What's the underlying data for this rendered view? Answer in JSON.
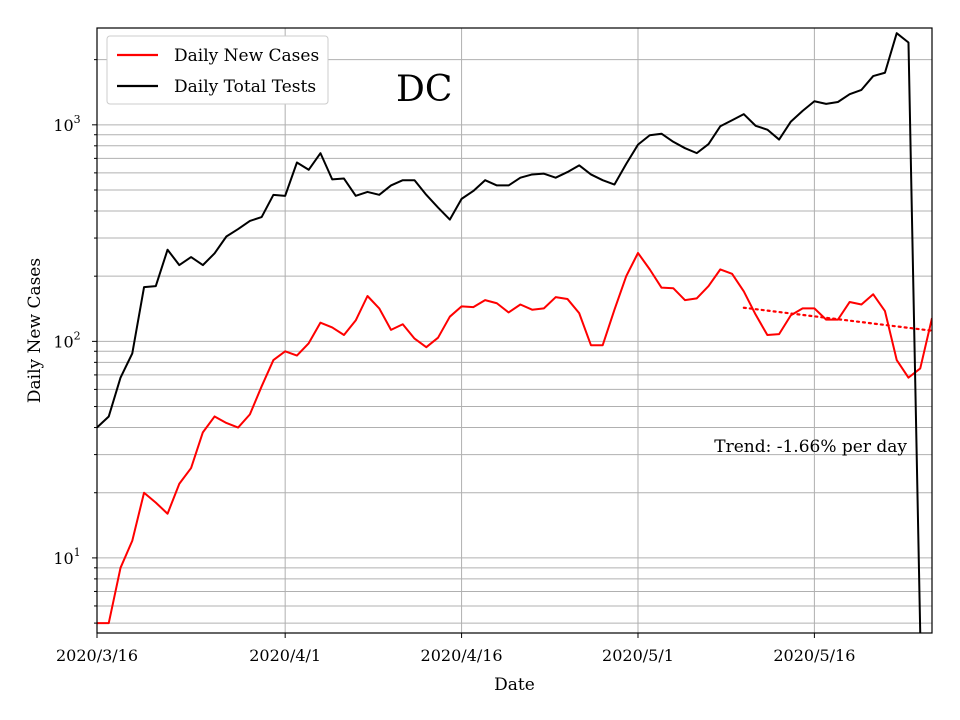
{
  "chart_data": {
    "type": "line",
    "title": "",
    "state_label": "DC",
    "xlabel": "Date",
    "ylabel": "Daily New Cases",
    "yscale": "log",
    "ylim": [
      4.5,
      2800
    ],
    "xlim": [
      "2020-03-16",
      "2020-05-26"
    ],
    "x_ticks": [
      "2020/3/16",
      "2020/4/1",
      "2020/4/16",
      "2020/5/1",
      "2020/5/16"
    ],
    "y_ticks": [
      "10^1",
      "10^2",
      "10^3"
    ],
    "grid": true,
    "legend_position": "upper-left",
    "annotation": "Trend: -1.66% per day",
    "series": [
      {
        "name": "Daily New Cases",
        "color": "#ff0000",
        "x": [
          "2020-03-16",
          "2020-03-17",
          "2020-03-18",
          "2020-03-19",
          "2020-03-20",
          "2020-03-21",
          "2020-03-22",
          "2020-03-23",
          "2020-03-24",
          "2020-03-25",
          "2020-03-26",
          "2020-03-27",
          "2020-03-28",
          "2020-03-29",
          "2020-03-30",
          "2020-03-31",
          "2020-04-01",
          "2020-04-02",
          "2020-04-03",
          "2020-04-04",
          "2020-04-05",
          "2020-04-06",
          "2020-04-07",
          "2020-04-08",
          "2020-04-09",
          "2020-04-10",
          "2020-04-11",
          "2020-04-12",
          "2020-04-13",
          "2020-04-14",
          "2020-04-15",
          "2020-04-16",
          "2020-04-17",
          "2020-04-18",
          "2020-04-19",
          "2020-04-20",
          "2020-04-21",
          "2020-04-22",
          "2020-04-23",
          "2020-04-24",
          "2020-04-25",
          "2020-04-26",
          "2020-04-27",
          "2020-04-28",
          "2020-04-29",
          "2020-04-30",
          "2020-05-01",
          "2020-05-02",
          "2020-05-03",
          "2020-05-04",
          "2020-05-05",
          "2020-05-06",
          "2020-05-07",
          "2020-05-08",
          "2020-05-09",
          "2020-05-10",
          "2020-05-11",
          "2020-05-12",
          "2020-05-13",
          "2020-05-14",
          "2020-05-15",
          "2020-05-16",
          "2020-05-17",
          "2020-05-18",
          "2020-05-19",
          "2020-05-20",
          "2020-05-21",
          "2020-05-22",
          "2020-05-23",
          "2020-05-24",
          "2020-05-25",
          "2020-05-26"
        ],
        "values": [
          5,
          5,
          9,
          12,
          20,
          18,
          16,
          22,
          26,
          38,
          45,
          42,
          40,
          46,
          62,
          82,
          90,
          86,
          98,
          122,
          116,
          107,
          125,
          162,
          142,
          113,
          120,
          103,
          94,
          104,
          130,
          145,
          144,
          155,
          150,
          136,
          148,
          140,
          142,
          160,
          157,
          135,
          96,
          96,
          140,
          200,
          256,
          215,
          177,
          176,
          155,
          158,
          180,
          215,
          205,
          170,
          133,
          107,
          108,
          132,
          142,
          142,
          126,
          126,
          152,
          148,
          165,
          138,
          82,
          68,
          75,
          128
        ]
      },
      {
        "name": "Daily Total Tests",
        "color": "#000000",
        "x": [
          "2020-03-16",
          "2020-03-17",
          "2020-03-18",
          "2020-03-19",
          "2020-03-20",
          "2020-03-21",
          "2020-03-22",
          "2020-03-23",
          "2020-03-24",
          "2020-03-25",
          "2020-03-26",
          "2020-03-27",
          "2020-03-28",
          "2020-03-29",
          "2020-03-30",
          "2020-03-31",
          "2020-04-01",
          "2020-04-02",
          "2020-04-03",
          "2020-04-04",
          "2020-04-05",
          "2020-04-06",
          "2020-04-07",
          "2020-04-08",
          "2020-04-09",
          "2020-04-10",
          "2020-04-11",
          "2020-04-12",
          "2020-04-13",
          "2020-04-14",
          "2020-04-15",
          "2020-04-16",
          "2020-04-17",
          "2020-04-18",
          "2020-04-19",
          "2020-04-20",
          "2020-04-21",
          "2020-04-22",
          "2020-04-23",
          "2020-04-24",
          "2020-04-25",
          "2020-04-26",
          "2020-04-27",
          "2020-04-28",
          "2020-04-29",
          "2020-04-30",
          "2020-05-01",
          "2020-05-02",
          "2020-05-03",
          "2020-05-04",
          "2020-05-05",
          "2020-05-06",
          "2020-05-07",
          "2020-05-08",
          "2020-05-09",
          "2020-05-10",
          "2020-05-11",
          "2020-05-12",
          "2020-05-13",
          "2020-05-14",
          "2020-05-15",
          "2020-05-16",
          "2020-05-17",
          "2020-05-18",
          "2020-05-19",
          "2020-05-20",
          "2020-05-21",
          "2020-05-22",
          "2020-05-23",
          "2020-05-24",
          "2020-05-25"
        ],
        "values": [
          40,
          45,
          68,
          88,
          178,
          180,
          265,
          225,
          245,
          225,
          255,
          305,
          330,
          360,
          375,
          475,
          470,
          670,
          620,
          740,
          560,
          565,
          470,
          490,
          475,
          525,
          555,
          555,
          475,
          415,
          365,
          455,
          495,
          555,
          525,
          525,
          570,
          590,
          595,
          570,
          605,
          650,
          590,
          555,
          530,
          660,
          810,
          895,
          910,
          835,
          780,
          740,
          815,
          985,
          1050,
          1120,
          990,
          950,
          855,
          1035,
          1160,
          1285,
          1250,
          1275,
          1385,
          1450,
          1680,
          1740,
          2650,
          2400,
          4.5
        ]
      },
      {
        "name": "Trend",
        "color": "#ff0000",
        "style": "dotted",
        "x": [
          "2020-05-10",
          "2020-05-26"
        ],
        "values": [
          143,
          112
        ]
      }
    ]
  }
}
